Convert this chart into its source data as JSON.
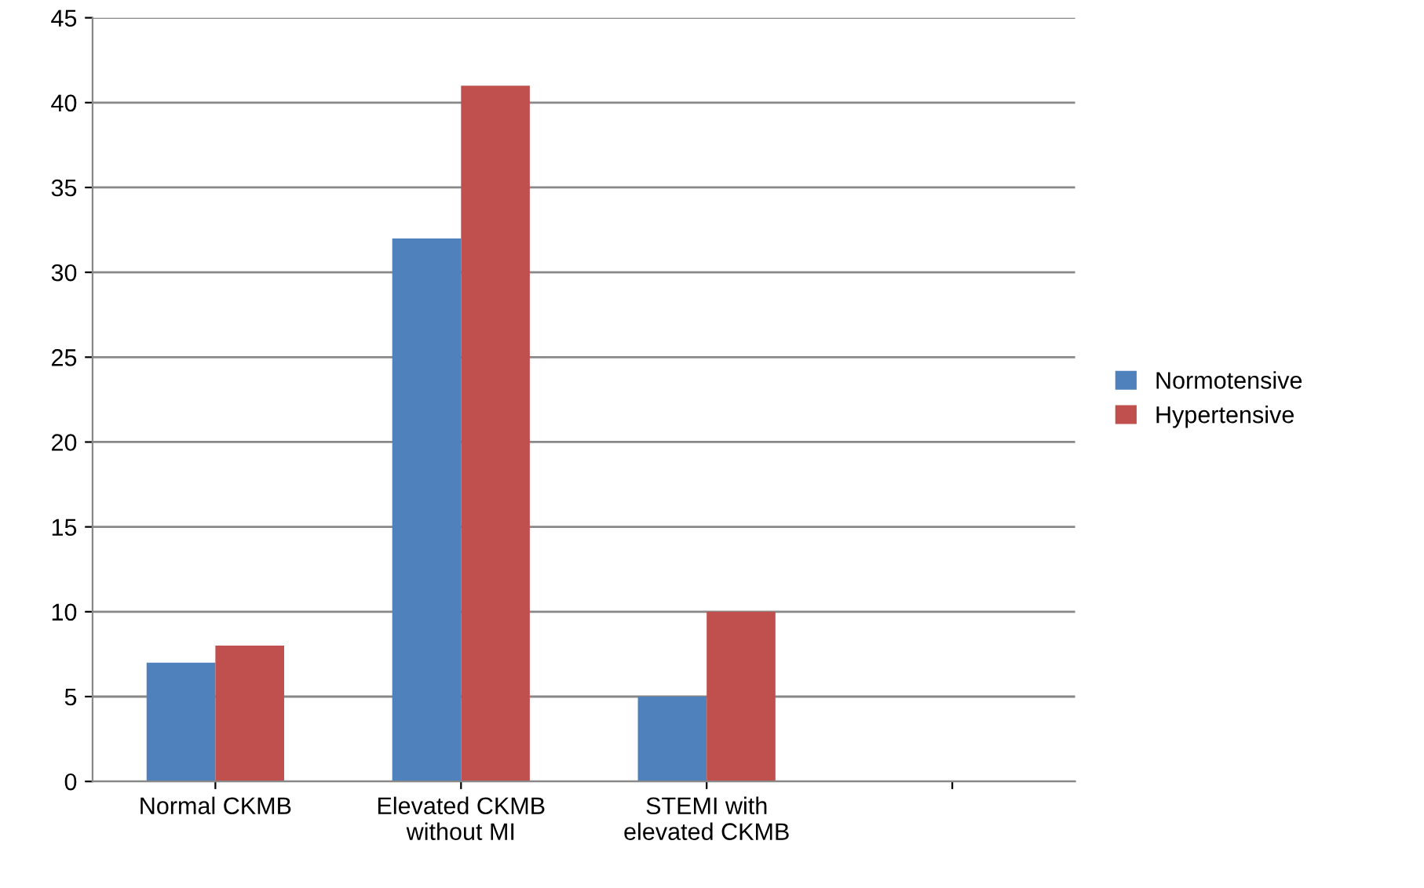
{
  "chart_data": {
    "type": "bar",
    "categories": [
      "Normal CKMB",
      "Elevated CKMB\nwithout MI",
      "STEMI with\nelevated CKMB",
      null
    ],
    "series": [
      {
        "name": "Normotensive",
        "color": "#4f81bd",
        "values": [
          7,
          32,
          5,
          null
        ]
      },
      {
        "name": "Hypertensive",
        "color": "#c0504d",
        "values": [
          8,
          41,
          10,
          null
        ]
      }
    ],
    "ylim": [
      0,
      45
    ],
    "yticks": [
      0,
      5,
      10,
      15,
      20,
      25,
      30,
      35,
      40,
      45
    ],
    "grid": "y",
    "legend": "right"
  }
}
